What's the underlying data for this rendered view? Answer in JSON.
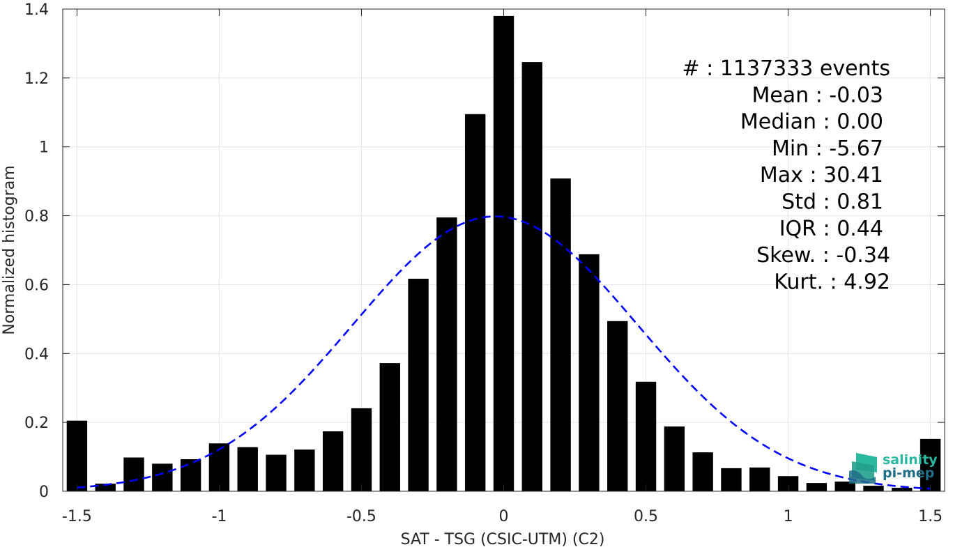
{
  "chart_data": {
    "type": "bar",
    "title": "",
    "xlabel": "SAT - TSG (CSIC-UTM) (C2)",
    "ylabel": "Normalized histogram",
    "xlim": [
      -1.55,
      1.55
    ],
    "ylim": [
      0,
      1.4
    ],
    "grid": true,
    "x_ticks": [
      -1.5,
      -1,
      -0.5,
      0,
      0.5,
      1,
      1.5
    ],
    "x_tick_labels": [
      "-1.5",
      "-1",
      "-0.5",
      "0",
      "0.5",
      "1",
      "1.5"
    ],
    "y_ticks": [
      0,
      0.2,
      0.4,
      0.6,
      0.8,
      1,
      1.2,
      1.4
    ],
    "y_tick_labels": [
      "0",
      "0.2",
      "0.4",
      "0.6",
      "0.8",
      "1",
      "1.2",
      "1.4"
    ],
    "bin_width": 0.1,
    "x": [
      -1.5,
      -1.4,
      -1.3,
      -1.2,
      -1.1,
      -1.0,
      -0.9,
      -0.8,
      -0.7,
      -0.6,
      -0.5,
      -0.4,
      -0.3,
      -0.2,
      -0.1,
      0.0,
      0.1,
      0.2,
      0.3,
      0.4,
      0.5,
      0.6,
      0.7,
      0.8,
      0.9,
      1.0,
      1.1,
      1.2,
      1.3,
      1.4,
      1.5
    ],
    "values": [
      0.205,
      0.022,
      0.098,
      0.08,
      0.093,
      0.139,
      0.128,
      0.106,
      0.121,
      0.174,
      0.241,
      0.372,
      0.617,
      0.795,
      1.095,
      1.38,
      1.246,
      0.908,
      0.688,
      0.494,
      0.318,
      0.188,
      0.113,
      0.067,
      0.069,
      0.044,
      0.024,
      0.028,
      0.016,
      0.01,
      0.152
    ],
    "bar_color": "#000000",
    "fit": {
      "type": "gaussian",
      "mean": -0.03,
      "std": 0.5,
      "x_range": [
        -1.5,
        1.5
      ],
      "color": "#0000ff",
      "style": "dashed"
    },
    "stats": [
      {
        "label": "#  : 1137333 events"
      },
      {
        "label": "Mean : -0.03"
      },
      {
        "label": "Median : 0.00"
      },
      {
        "label": "Min : -5.67"
      },
      {
        "label": "Max : 30.41"
      },
      {
        "label": "Std : 0.81"
      },
      {
        "label": "IQR : 0.44"
      },
      {
        "label": "Skew. : -0.34"
      },
      {
        "label": "Kurt. : 4.92"
      }
    ]
  },
  "logo": {
    "line1": "salinity",
    "line2": "pi-mep",
    "color_light": "#2bb8a0",
    "color_dark": "#1e6f86"
  }
}
